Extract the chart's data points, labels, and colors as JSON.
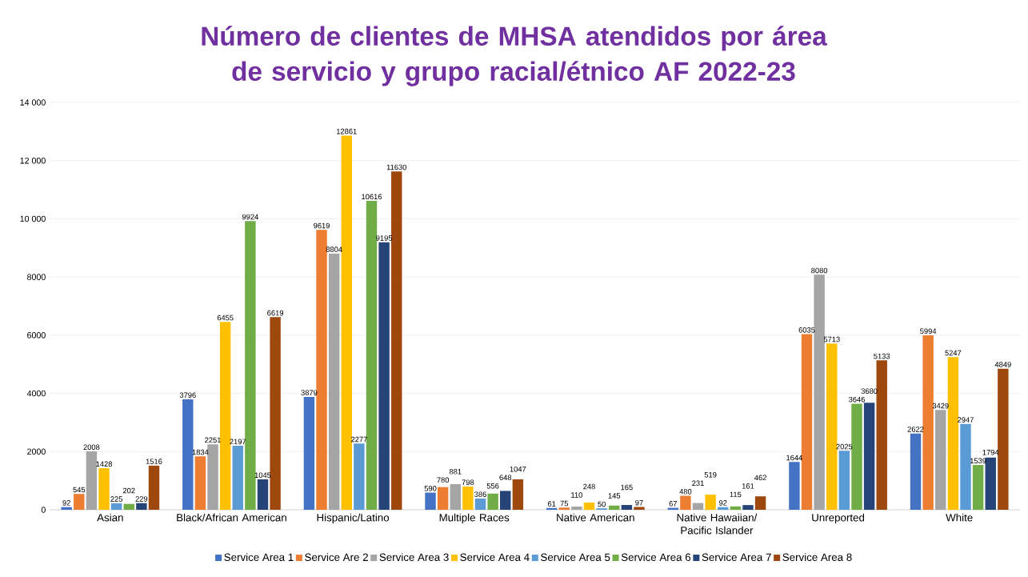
{
  "chart_data": {
    "type": "bar",
    "title": "Número de clientes de MHSA atendidos por área de servicio y grupo racial/étnico AF 2022-23",
    "categories": [
      "Asian",
      "Black/African American",
      "Hispanic/Latino",
      "Multiple Races",
      "Native American",
      "Native Hawaiian/ Pacific Islander",
      "Unreported",
      "White"
    ],
    "series": [
      {
        "name": "Service Area 1",
        "color": "#4472c4",
        "values": [
          92,
          3796,
          3879,
          590,
          61,
          67,
          1644,
          2622
        ]
      },
      {
        "name": "Service Are 2",
        "color": "#ed7d31",
        "values": [
          545,
          1834,
          9619,
          780,
          75,
          480,
          6035,
          5994
        ]
      },
      {
        "name": "Service Area 3",
        "color": "#a5a5a5",
        "values": [
          2008,
          2251,
          8804,
          881,
          110,
          231,
          8080,
          3429
        ]
      },
      {
        "name": "Service Area 4",
        "color": "#ffc000",
        "values": [
          1428,
          6455,
          12861,
          798,
          248,
          519,
          5713,
          5247
        ]
      },
      {
        "name": "Service Area 5",
        "color": "#5b9bd5",
        "values": [
          225,
          2197,
          2277,
          386,
          50,
          92,
          2025,
          2947
        ]
      },
      {
        "name": "Service Area 6",
        "color": "#70ad47",
        "values": [
          202,
          9924,
          10616,
          556,
          145,
          115,
          3646,
          1539
        ]
      },
      {
        "name": "Service Area 7",
        "color": "#264478",
        "values": [
          229,
          1045,
          9195,
          648,
          165,
          161,
          3680,
          1794
        ]
      },
      {
        "name": "Service Area 8",
        "color": "#9e480e",
        "values": [
          1516,
          6619,
          11630,
          1047,
          97,
          462,
          5133,
          4849
        ]
      }
    ],
    "ylim": [
      0,
      14000
    ],
    "yticks": [
      0,
      2000,
      4000,
      6000,
      8000,
      {
        "value": 10000,
        "label": "10 000"
      },
      {
        "value": 12000,
        "label": "12 000"
      },
      {
        "value": 14000,
        "label": "14 000"
      }
    ],
    "grid": "y",
    "legend": "bottom",
    "data_labels": true
  }
}
